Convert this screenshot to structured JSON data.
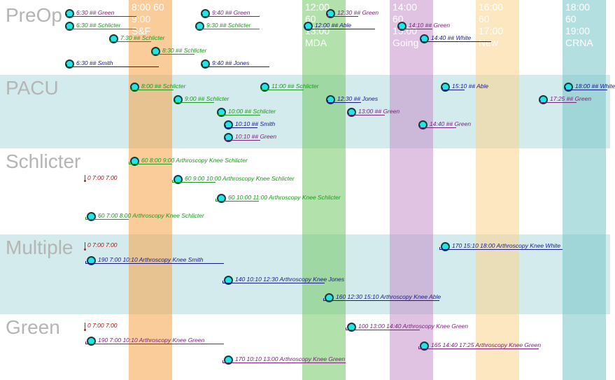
{
  "columns": [
    {
      "key": "sf",
      "label": "8:00 60\n9:00\nS&F",
      "color": "#f5a247"
    },
    {
      "key": "mda",
      "label": "12:00\n60\n13:00\nMDA",
      "color": "#74c966"
    },
    {
      "key": "going",
      "label": "14:00\n60\n15:00\nGoing",
      "color": "#c78fcc"
    },
    {
      "key": "new",
      "label": "16:00\n60\n17:00\nNew",
      "color": "#fbd38e"
    },
    {
      "key": "crna",
      "label": "18:00\n60\n19:00\nCRNA",
      "color": "#77c4c6"
    }
  ],
  "sections": [
    {
      "key": "preop",
      "title": "PreOp"
    },
    {
      "key": "pacu",
      "title": "PACU"
    },
    {
      "key": "schlicter",
      "title": "Schlicter"
    },
    {
      "key": "multiple",
      "title": "Multiple"
    },
    {
      "key": "green",
      "title": "Green"
    }
  ],
  "colors": {
    "Green": "#7a1f7a",
    "Schlicter": "#1a9a1a",
    "Smith": "#1a1a8a",
    "Jones": "#1a1a8a",
    "Able": "#1a1a8a",
    "White": "#1a1a8a",
    "zero": "#aa1515"
  },
  "preop_events": [
    {
      "text": "6:30 ## Green",
      "who": "Green"
    },
    {
      "text": "6:30 ## Schlicter",
      "who": "Schlicter"
    },
    {
      "text": "7:30 ## Schlicter",
      "who": "Schlicter"
    },
    {
      "text": "8:30 ## Schlicter",
      "who": "Schlicter"
    },
    {
      "text": "6:30 ## Smith",
      "who": "Smith"
    },
    {
      "text": "9:40 ## Green",
      "who": "Green"
    },
    {
      "text": "9:30 ## Schlicter",
      "who": "Schlicter"
    },
    {
      "text": "9:40 ## Jones",
      "who": "Jones"
    },
    {
      "text": "12:30 ## Green",
      "who": "Green"
    },
    {
      "text": "12:00 ## Able",
      "who": "Able"
    },
    {
      "text": "14:10 ## Green",
      "who": "Green"
    },
    {
      "text": "14:40 ## White",
      "who": "White"
    }
  ],
  "pacu_events": [
    {
      "text": "8:00 ## Schlicter",
      "who": "Schlicter"
    },
    {
      "text": "9:00 ##  Schlicter",
      "who": "Schlicter"
    },
    {
      "text": "10:00 ## Schlicter",
      "who": "Schlicter"
    },
    {
      "text": "10:10 ## Smith",
      "who": "Smith"
    },
    {
      "text": "10:10 ## Green",
      "who": "Green"
    },
    {
      "text": "11:00 ## Schlicter",
      "who": "Schlicter"
    },
    {
      "text": "12:30 ## Jones",
      "who": "Jones"
    },
    {
      "text": "13:00 ## Green",
      "who": "Green"
    },
    {
      "text": "14:40 ## Green",
      "who": "Green"
    },
    {
      "text": "15:10 ## Able",
      "who": "Able"
    },
    {
      "text": "17:25 ## Green",
      "who": "Green"
    },
    {
      "text": "18:00 ## White",
      "who": "White"
    }
  ],
  "schlicter_events": [
    {
      "text": "60 8:00 9:00 Arthroscopy Knee  Schlicter",
      "who": "Schlicter"
    },
    {
      "text": "60 9:00 10:00 Arthroscopy Knee  Schlicter",
      "who": "Schlicter"
    },
    {
      "text": "60 10:00 11:00 Arthroscopy Knee  Schlicter",
      "who": "Schlicter"
    },
    {
      "text": "60 7:00 8:00 Arthroscopy Knee  Schlicter",
      "who": "Schlicter"
    }
  ],
  "schlicter_zero": "0 7:00 7:00",
  "multiple_events": [
    {
      "text": "190 7:00 10:10 Arthroscopy Knee  Smith",
      "who": "Smith"
    },
    {
      "text": "140 10:10 12:30 Arthroscopy Knee  Jones",
      "who": "Jones"
    },
    {
      "text": "160 12:30 15:10 Arthroscopy Knee  Able",
      "who": "Able"
    },
    {
      "text": "170 15:10 18:00 Arthroscopy Knee  White",
      "who": "White"
    }
  ],
  "multiple_zero": "0 7:00 7:00",
  "green_events": [
    {
      "text": "190 7:00 10:10 Arthroscopy Knee  Green",
      "who": "Green"
    },
    {
      "text": "170 10:10 13:00 Arthroscopy Knee  Green",
      "who": "Green"
    },
    {
      "text": "100 13:00 14:40 Arthroscopy Knee  Green",
      "who": "Green"
    },
    {
      "text": "165 14:40 17:25 Arthroscopy Knee  Green",
      "who": "Green"
    }
  ],
  "green_zero": "0 7:00 7:00"
}
